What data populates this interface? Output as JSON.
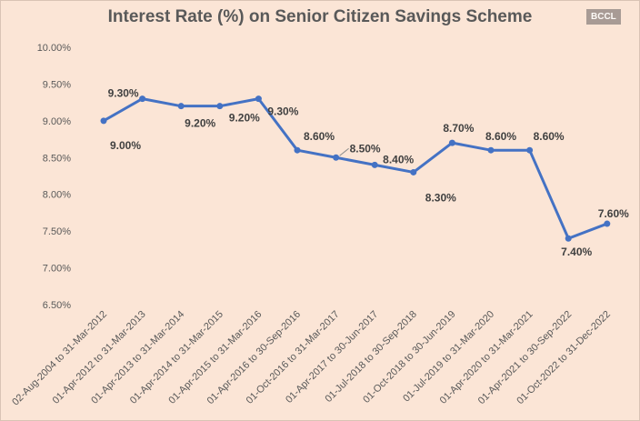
{
  "chart_data": {
    "type": "line",
    "title": "Interest Rate (%) on Senior Citizen Savings Scheme",
    "xlabel": "",
    "ylabel": "",
    "ylim": [
      6.5,
      10.0
    ],
    "y_ticks": [
      "6.50%",
      "7.00%",
      "7.50%",
      "8.00%",
      "8.50%",
      "9.00%",
      "9.50%",
      "10.00%"
    ],
    "grid": false,
    "categories": [
      "02-Aug-2004 to 31-Mar-2012",
      "01-Apr-2012 to 31-Mar-2013",
      "01-Apr-2013 to 31-Mar-2014",
      "01-Apr-2014 to 31-Mar-2015",
      "01-Apr-2015 to 31-Mar-2016",
      "01-Apr-2016 to 30-Sep-2016",
      "01-Oct-2016 to 31-Mar-2017",
      "01-Apr-2017 to 30-Jun-2017",
      "01-Jul-2018 to 30-Sep-2018",
      "01-Oct-2018 to 30-Jun-2019",
      "01-Jul-2019 to 31-Mar-2020",
      "01-Apr-2020 to 31-Mar-2021",
      "01-Apr-2021 to 30-Sep-2022",
      "01-Oct-2022 to 31-Dec-2022"
    ],
    "series": [
      {
        "name": "Interest Rate",
        "values": [
          9.0,
          9.3,
          9.2,
          9.2,
          9.3,
          8.6,
          8.5,
          8.4,
          8.3,
          8.7,
          8.6,
          8.6,
          7.4,
          7.6
        ],
        "labels": [
          "9.00%",
          "9.30%",
          "9.20%",
          "9.20%",
          "9.30%",
          "8.60%",
          "8.50%",
          "8.40%",
          "8.30%",
          "8.70%",
          "8.60%",
          "8.60%",
          "7.40%",
          "7.60%"
        ]
      }
    ],
    "colors": {
      "line": "#4472c4",
      "text": "#404040",
      "axis": "#595959"
    }
  },
  "watermark": "BCCL"
}
